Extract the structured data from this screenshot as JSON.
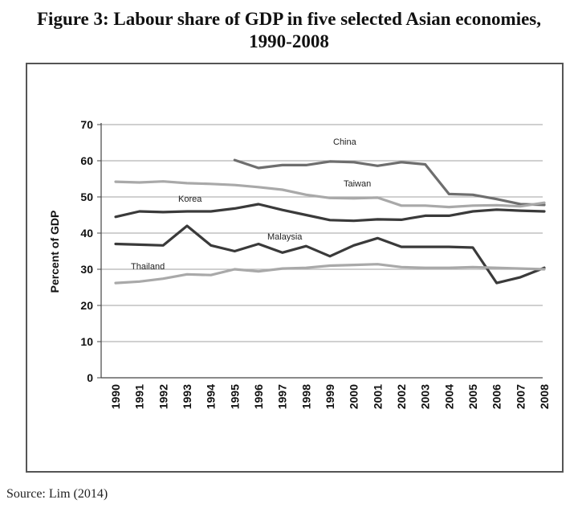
{
  "title_line1": "Figure 3: Labour share of GDP in five selected Asian economies,",
  "title_line2": "1990-2008",
  "source": "Source: Lim (2014)",
  "chart_data": {
    "type": "line",
    "title": "Figure 3: Labour share of GDP in five selected Asian economies, 1990-2008",
    "ylabel": "Percent of GDP",
    "xlabel": "",
    "ylim": [
      0,
      70
    ],
    "yticks": [
      0,
      10,
      20,
      30,
      40,
      50,
      60,
      70
    ],
    "grid": true,
    "x": [
      "1990",
      "1991",
      "1992",
      "1993",
      "1994",
      "1995",
      "1996",
      "1997",
      "1998",
      "1999",
      "2000",
      "2001",
      "2002",
      "2003",
      "2004",
      "2005",
      "2006",
      "2007",
      "2008"
    ],
    "series": [
      {
        "name": "China",
        "color": "#6e6e6e",
        "values": [
          null,
          null,
          null,
          null,
          null,
          60.2,
          58.0,
          58.8,
          58.8,
          59.8,
          59.6,
          58.6,
          59.6,
          59.0,
          50.8,
          50.6,
          49.4,
          48.0,
          47.8
        ]
      },
      {
        "name": "Taiwan",
        "color": "#a9a9a9",
        "values": [
          54.2,
          54.0,
          54.3,
          53.8,
          53.6,
          53.3,
          52.7,
          52.0,
          50.6,
          49.7,
          49.6,
          49.8,
          47.6,
          47.6,
          47.2,
          47.6,
          47.7,
          47.4,
          48.4
        ]
      },
      {
        "name": "Korea",
        "color": "#3a3a3a",
        "values": [
          44.5,
          46.0,
          45.8,
          46.0,
          46.0,
          46.8,
          48.0,
          46.4,
          45.0,
          43.6,
          43.4,
          43.8,
          43.7,
          44.8,
          44.8,
          46.0,
          46.5,
          46.2,
          46.0
        ]
      },
      {
        "name": "Malaysia",
        "color": "#3a3a3a",
        "values": [
          37.0,
          36.8,
          36.6,
          42.0,
          36.6,
          35.0,
          37.0,
          34.6,
          36.4,
          33.6,
          36.6,
          38.6,
          36.2,
          36.2,
          36.2,
          36.0,
          26.2,
          27.8,
          30.4
        ]
      },
      {
        "name": "Thailand",
        "color": "#a9a9a9",
        "values": [
          26.2,
          26.6,
          27.4,
          28.6,
          28.4,
          30.0,
          29.4,
          30.2,
          30.4,
          31.0,
          31.2,
          31.4,
          30.6,
          30.4,
          30.4,
          30.6,
          30.4,
          30.2,
          30.0
        ]
      }
    ]
  }
}
